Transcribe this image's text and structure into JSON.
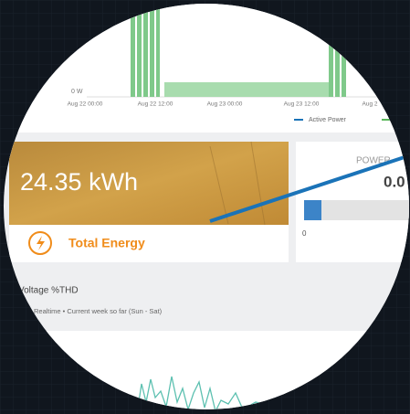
{
  "top_chart": {
    "y_label": "0 W",
    "x_ticks": [
      "Aug 22 00:00",
      "Aug 22 12:00",
      "Aug 23 00:00",
      "Aug 23 12:00",
      "Aug 2"
    ],
    "legend": [
      "Active Power"
    ]
  },
  "energy_card": {
    "value": "24.35 kWh",
    "label": "Total Energy"
  },
  "power_card": {
    "title": "POWER",
    "value": "0.0",
    "min": "0"
  },
  "thd_panel": {
    "title": "Voltage %THD",
    "subtitle": "Realtime • Current week so far (Sun - Sat)"
  }
}
